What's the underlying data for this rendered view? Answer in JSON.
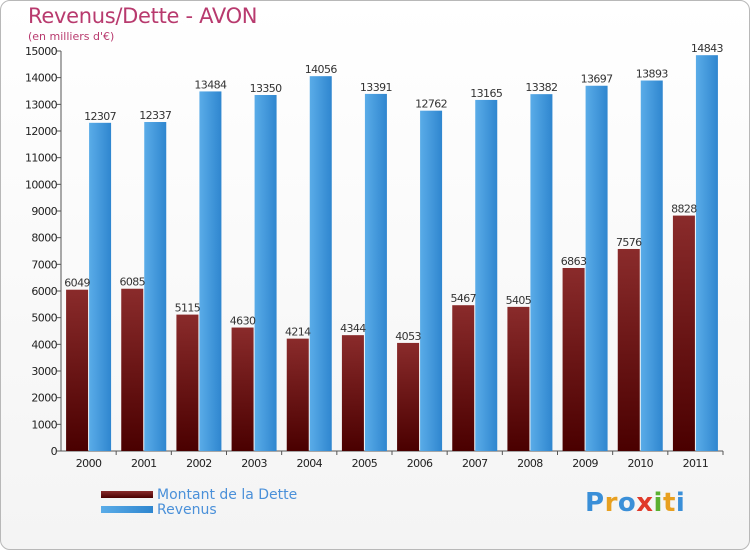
{
  "title": "Revenus/Dette - AVON",
  "subtitle": "(en milliers d'€)",
  "legend": {
    "debt_label": "Montant de la Dette",
    "revenue_label": "Revenus"
  },
  "logo": {
    "text": "Proxiti"
  },
  "colors": {
    "debt_top": "#8a2b2b",
    "debt_bottom": "#4a0000",
    "revenue_light": "#5aace8",
    "revenue_dark": "#2f86cf",
    "title": "#b83a6e",
    "legend_text": "#4a90d9"
  },
  "chart_data": {
    "type": "bar",
    "title": "Revenus/Dette - AVON",
    "subtitle": "(en milliers d'€)",
    "categories": [
      "2000",
      "2001",
      "2002",
      "2003",
      "2004",
      "2005",
      "2006",
      "2007",
      "2008",
      "2009",
      "2010",
      "2011"
    ],
    "series": [
      {
        "name": "Montant de la Dette",
        "values": [
          6049,
          6085,
          5115,
          4630,
          4214,
          4344,
          4053,
          5467,
          5405,
          6863,
          7576,
          8828
        ]
      },
      {
        "name": "Revenus",
        "values": [
          12307,
          12337,
          13484,
          13350,
          14056,
          13391,
          12762,
          13165,
          13382,
          13697,
          13893,
          14843
        ]
      }
    ],
    "ylim": [
      0,
      15000
    ],
    "ytick_step": 1000,
    "grid": false,
    "legend_position": "bottom-left"
  }
}
